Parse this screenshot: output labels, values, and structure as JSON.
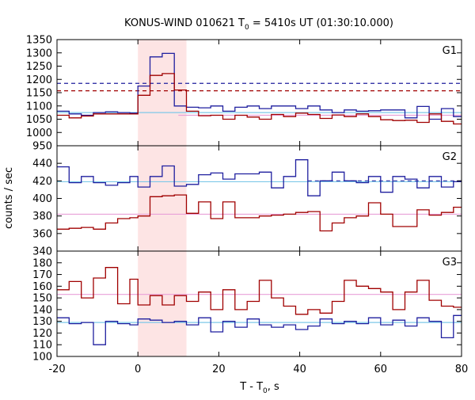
{
  "chart_data": {
    "type": "line",
    "title_prefix": "KONUS-WIND 010621 T",
    "title_sub": "0",
    "title_suffix": " = 5410s UT (01:30:10.000)",
    "xlabel_prefix": "T - T",
    "xlabel_sub": "0",
    "xlabel_suffix": ", s",
    "ylabel": "counts / sec",
    "xlim": [
      -20,
      80
    ],
    "xticks": [
      -20,
      0,
      20,
      40,
      60,
      80
    ],
    "grid": false,
    "highlight_interval": [
      0,
      12
    ],
    "colors": {
      "blue": "#1f1f9f",
      "red": "#a00000",
      "highlight": "#fde4e4",
      "cyan_fit": "#7ec8e8",
      "pink_fit": "#e8a0d8"
    },
    "panels": [
      {
        "label": "G1",
        "ylim": [
          950,
          1350
        ],
        "yticks": [
          950,
          1000,
          1050,
          1100,
          1150,
          1200,
          1250,
          1300,
          1350
        ],
        "series": [
          {
            "color": "blue",
            "x": [
              -20,
              -17,
              -14,
              -11,
              -8,
              -5,
              -2,
              0,
              3,
              6,
              9,
              12,
              15,
              18,
              21,
              24,
              27,
              30,
              33,
              36,
              39,
              42,
              45,
              48,
              51,
              54,
              57,
              60,
              63,
              66,
              69,
              72,
              75,
              78,
              80
            ],
            "y": [
              1080,
              1070,
              1065,
              1075,
              1078,
              1075,
              1073,
              1175,
              1285,
              1298,
              1100,
              1095,
              1093,
              1100,
              1080,
              1095,
              1100,
              1090,
              1100,
              1100,
              1090,
              1100,
              1085,
              1075,
              1085,
              1080,
              1082,
              1085,
              1085,
              1055,
              1098,
              1050,
              1090,
              1060,
              1060
            ]
          },
          {
            "color": "red",
            "x": [
              -20,
              -17,
              -14,
              -11,
              -8,
              -5,
              -2,
              0,
              3,
              6,
              9,
              12,
              15,
              18,
              21,
              24,
              27,
              30,
              33,
              36,
              39,
              42,
              45,
              48,
              51,
              54,
              57,
              60,
              63,
              66,
              69,
              72,
              75,
              78,
              80
            ],
            "y": [
              1065,
              1055,
              1062,
              1070,
              1070,
              1070,
              1070,
              1140,
              1215,
              1222,
              1160,
              1080,
              1063,
              1065,
              1050,
              1065,
              1058,
              1050,
              1068,
              1060,
              1073,
              1068,
              1053,
              1066,
              1060,
              1070,
              1060,
              1048,
              1045,
              1046,
              1038,
              1070,
              1042,
              1032,
              1032
            ]
          }
        ],
        "levels": [
          {
            "value": 1185,
            "color": "blue",
            "style": "dashed",
            "from": -20,
            "to": 80
          },
          {
            "value": 1157,
            "color": "red",
            "style": "dashed",
            "from": -20,
            "to": 80
          },
          {
            "value": 1075,
            "color": "cyan_fit",
            "style": "solid",
            "from": -20,
            "to": 80
          },
          {
            "value": 1065,
            "color": "pink_fit",
            "style": "solid",
            "from": 10,
            "to": 80
          }
        ]
      },
      {
        "label": "G2",
        "ylim": [
          340,
          460
        ],
        "yticks": [
          340,
          360,
          380,
          400,
          420,
          440
        ],
        "series": [
          {
            "color": "blue",
            "x": [
              -20,
              -17,
              -14,
              -11,
              -8,
              -5,
              -2,
              0,
              3,
              6,
              9,
              12,
              15,
              18,
              21,
              24,
              27,
              30,
              33,
              36,
              39,
              42,
              45,
              48,
              51,
              54,
              57,
              60,
              63,
              66,
              69,
              72,
              75,
              78,
              80
            ],
            "y": [
              436,
              418,
              425,
              418,
              415,
              418,
              425,
              413,
              425,
              437,
              414,
              416,
              427,
              429,
              422,
              428,
              428,
              430,
              412,
              425,
              444,
              403,
              420,
              430,
              420,
              418,
              425,
              407,
              425,
              422,
              412,
              425,
              413,
              419,
              419
            ]
          },
          {
            "color": "red",
            "x": [
              -20,
              -17,
              -14,
              -11,
              -8,
              -5,
              -2,
              0,
              3,
              6,
              9,
              12,
              15,
              18,
              21,
              24,
              27,
              30,
              33,
              36,
              39,
              42,
              45,
              48,
              51,
              54,
              57,
              60,
              63,
              66,
              69,
              72,
              75,
              78,
              80
            ],
            "y": [
              365,
              366,
              367,
              365,
              372,
              377,
              378,
              380,
              402,
              403,
              404,
              383,
              396,
              377,
              396,
              378,
              378,
              380,
              381,
              382,
              384,
              385,
              363,
              372,
              378,
              380,
              395,
              382,
              368,
              368,
              387,
              381,
              384,
              390,
              390
            ]
          }
        ],
        "levels": [
          {
            "value": 420,
            "color": "blue",
            "style": "dashed",
            "from": 42,
            "to": 80
          },
          {
            "value": 419,
            "color": "cyan_fit",
            "style": "solid",
            "from": -20,
            "to": 80
          },
          {
            "value": 382,
            "color": "pink_fit",
            "style": "solid",
            "from": -20,
            "to": 80
          }
        ]
      },
      {
        "label": "G3",
        "ylim": [
          100,
          190
        ],
        "yticks": [
          100,
          110,
          120,
          130,
          140,
          150,
          160,
          170,
          180
        ],
        "series": [
          {
            "color": "blue",
            "x": [
              -20,
              -17,
              -14,
              -11,
              -8,
              -5,
              -2,
              0,
              3,
              6,
              9,
              12,
              15,
              18,
              21,
              24,
              27,
              30,
              33,
              36,
              39,
              42,
              45,
              48,
              51,
              54,
              57,
              60,
              63,
              66,
              69,
              72,
              75,
              78,
              80
            ],
            "y": [
              133,
              128,
              129,
              110,
              130,
              128,
              127,
              132,
              131,
              129,
              130,
              127,
              133,
              121,
              130,
              125,
              132,
              127,
              125,
              127,
              123,
              126,
              132,
              128,
              130,
              128,
              133,
              127,
              131,
              126,
              133,
              130,
              116,
              135,
              135
            ]
          },
          {
            "color": "red",
            "x": [
              -20,
              -17,
              -14,
              -11,
              -8,
              -5,
              -2,
              0,
              3,
              6,
              9,
              12,
              15,
              18,
              21,
              24,
              27,
              30,
              33,
              36,
              39,
              42,
              45,
              48,
              51,
              54,
              57,
              60,
              63,
              66,
              69,
              72,
              75,
              78,
              80
            ],
            "y": [
              157,
              164,
              150,
              167,
              176,
              145,
              166,
              144,
              152,
              144,
              152,
              147,
              155,
              140,
              157,
              140,
              147,
              165,
              150,
              143,
              136,
              140,
              137,
              147,
              165,
              160,
              158,
              155,
              140,
              155,
              165,
              148,
              143,
              142,
              142
            ]
          }
        ],
        "levels": [
          {
            "value": 129,
            "color": "cyan_fit",
            "style": "solid",
            "from": -20,
            "to": 80
          },
          {
            "value": 153,
            "color": "pink_fit",
            "style": "solid",
            "from": -20,
            "to": 80
          }
        ]
      }
    ]
  }
}
